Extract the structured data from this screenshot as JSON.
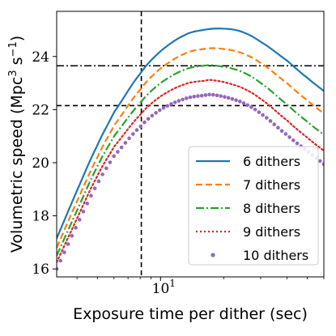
{
  "chart_data": {
    "type": "line",
    "xlabel": "Exposure time per dither (sec)",
    "ylabel": "Volumetric speed (Mpc",
    "ylabel_exp": "3",
    "ylabel_mid": " s",
    "ylabel_exp2": "−1",
    "ylabel_end": ")",
    "x_scale": "log",
    "xlim": [
      3.2,
      60
    ],
    "ylim": [
      15.7,
      25.7
    ],
    "x_tick_base": "10",
    "x_tick_exp": "1",
    "x_tick_value": 10,
    "y_ticks": [
      16,
      18,
      20,
      22,
      24
    ],
    "y_tick_labels": [
      "16",
      "18",
      "20",
      "22",
      "24"
    ],
    "grid": false,
    "legend_position": "lower right",
    "reference_lines": {
      "vertical_x": 8.1,
      "horizontal_dashed_y": 22.15,
      "horizontal_dashdot_y": 23.65
    },
    "series": [
      {
        "name": "6 dithers",
        "color": "#1f77b4",
        "style": "solid",
        "peak_x": 19.5,
        "peak_y": 25.05,
        "x": [
          3.2,
          4.0,
          5.0,
          6.0,
          8.0,
          10.0,
          13.0,
          16.0,
          19.5,
          24.0,
          30.0,
          40.0,
          50.0,
          60.0
        ],
        "y": [
          17.15,
          18.95,
          20.65,
          21.9,
          23.35,
          24.2,
          24.8,
          25.0,
          25.05,
          24.95,
          24.55,
          23.85,
          23.2,
          22.7
        ]
      },
      {
        "name": "7 dithers",
        "color": "#ff7f0e",
        "style": "dashed",
        "peak_x": 19,
        "peak_y": 24.3,
        "x": [
          3.2,
          4.0,
          5.0,
          6.0,
          8.0,
          10.0,
          13.0,
          16.0,
          19.0,
          24.0,
          30.0,
          40.0,
          50.0,
          60.0
        ],
        "y": [
          16.8,
          18.55,
          20.2,
          21.4,
          22.75,
          23.55,
          24.1,
          24.28,
          24.3,
          24.15,
          23.75,
          23.0,
          22.35,
          21.85
        ]
      },
      {
        "name": "8 dithers",
        "color": "#2ca02c",
        "style": "dashdot",
        "peak_x": 18.5,
        "peak_y": 23.65,
        "x": [
          3.2,
          4.0,
          5.0,
          6.0,
          8.0,
          10.0,
          13.0,
          16.0,
          18.5,
          24.0,
          30.0,
          40.0,
          50.0,
          60.0
        ],
        "y": [
          16.5,
          18.2,
          19.85,
          21.0,
          22.25,
          23.0,
          23.5,
          23.65,
          23.65,
          23.45,
          23.0,
          22.2,
          21.55,
          21.05
        ]
      },
      {
        "name": "9 dithers",
        "color": "#d62728",
        "style": "dotted",
        "peak_x": 18,
        "peak_y": 23.1,
        "x": [
          3.2,
          4.0,
          5.0,
          6.0,
          8.0,
          10.0,
          13.0,
          16.0,
          18.0,
          24.0,
          30.0,
          40.0,
          50.0,
          60.0
        ],
        "y": [
          16.25,
          17.9,
          19.5,
          20.6,
          21.8,
          22.5,
          22.95,
          23.08,
          23.1,
          22.85,
          22.4,
          21.6,
          20.95,
          20.45
        ]
      },
      {
        "name": "10 dithers",
        "color": "#9467bd",
        "style": "markers",
        "peak_x": 18,
        "peak_y": 22.55,
        "x": [
          3.2,
          4.0,
          5.0,
          6.0,
          8.0,
          10.0,
          13.0,
          16.0,
          18.0,
          24.0,
          30.0,
          40.0,
          50.0,
          60.0
        ],
        "y": [
          16.0,
          17.65,
          19.2,
          20.25,
          21.35,
          22.0,
          22.4,
          22.53,
          22.55,
          22.3,
          21.85,
          21.05,
          20.45,
          19.95
        ]
      }
    ]
  }
}
